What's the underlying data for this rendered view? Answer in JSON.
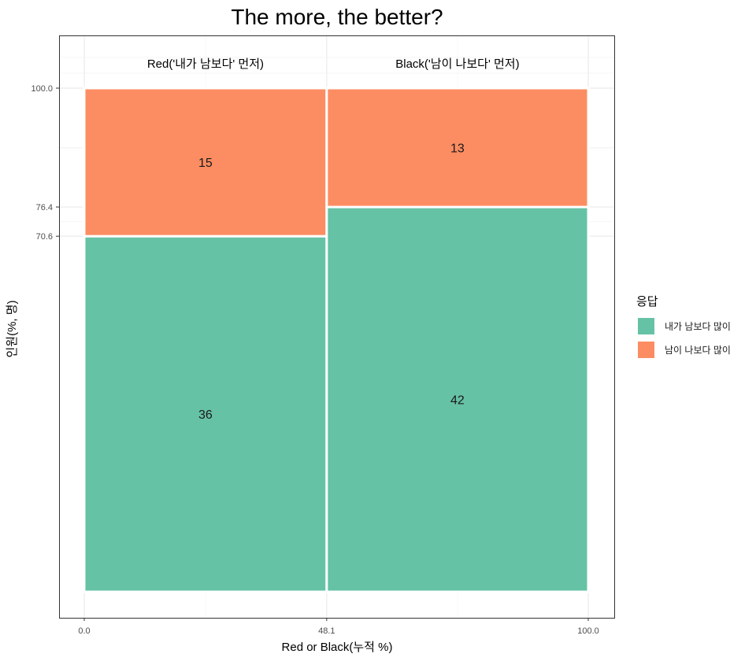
{
  "chart_data": {
    "type": "mosaic",
    "title": "The more, the better?",
    "xlabel": "Red or Black(누적 %)",
    "ylabel": "인원(%, 명)",
    "xlim": [
      0,
      100
    ],
    "ylim": [
      0,
      100
    ],
    "x_ticks": [
      "0.0",
      "48.1",
      "100.0"
    ],
    "y_ticks": [
      "70.6",
      "76.4",
      "100.0"
    ],
    "legend": {
      "title": "응답",
      "position": "right",
      "items": [
        {
          "label": "내가 남보다 많이",
          "color": "#66C2A5"
        },
        {
          "label": "남이 나보다 많이",
          "color": "#FC8D62"
        }
      ]
    },
    "columns": [
      {
        "name": "Red('내가 남보다' 먼저)",
        "x_start": 0,
        "x_end": 48.1,
        "cells": [
          {
            "series": "내가 남보다 많이",
            "count": 36,
            "y_start": 0,
            "y_end": 70.6
          },
          {
            "series": "남이 나보다 많이",
            "count": 15,
            "y_start": 70.6,
            "y_end": 100
          }
        ]
      },
      {
        "name": "Black('남이 나보다' 먼저)",
        "x_start": 48.1,
        "x_end": 100,
        "cells": [
          {
            "series": "내가 남보다 많이",
            "count": 42,
            "y_start": 0,
            "y_end": 76.4
          },
          {
            "series": "남이 나보다 많이",
            "count": 13,
            "y_start": 76.4,
            "y_end": 100
          }
        ]
      }
    ]
  }
}
